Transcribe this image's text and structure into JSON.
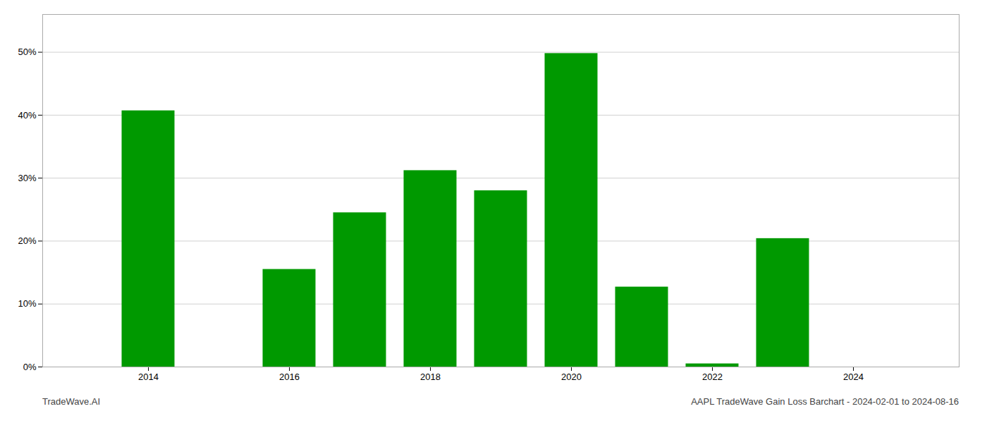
{
  "chart_data": {
    "type": "bar",
    "x": [
      2014,
      2015,
      2016,
      2017,
      2018,
      2019,
      2020,
      2021,
      2022,
      2023,
      2024
    ],
    "values": [
      0.407,
      0.0,
      0.155,
      0.245,
      0.312,
      0.28,
      0.498,
      0.127,
      0.005,
      0.204,
      0.0
    ],
    "color": "#009900",
    "xlim": [
      2012.5,
      2025.5
    ],
    "xticks": [
      2014,
      2016,
      2018,
      2020,
      2022,
      2024
    ],
    "ylim": [
      0.0,
      0.56
    ],
    "yticks": [
      {
        "value": 0.0,
        "label": "0%"
      },
      {
        "value": 0.1,
        "label": "10%"
      },
      {
        "value": 0.2,
        "label": "20%"
      },
      {
        "value": 0.3,
        "label": "30%"
      },
      {
        "value": 0.4,
        "label": "40%"
      },
      {
        "value": 0.5,
        "label": "50%"
      }
    ],
    "grid": true,
    "annotations": [
      "TradeWave.AI",
      "AAPL TradeWave Gain Loss Barchart - 2024-02-01 to 2024-08-16"
    ]
  }
}
